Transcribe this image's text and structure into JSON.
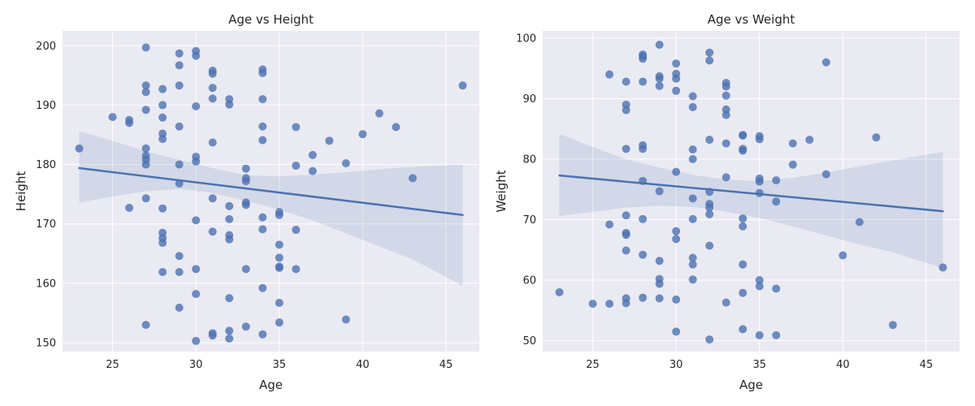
{
  "chart_data": [
    {
      "type": "scatter",
      "title": "Age vs Height",
      "xlabel": "Age",
      "ylabel": "Height",
      "xlim": [
        22,
        47
      ],
      "ylim": [
        148.5,
        202.5
      ],
      "xticks": [
        25,
        30,
        35,
        40,
        45
      ],
      "yticks": [
        150,
        160,
        170,
        180,
        190,
        200
      ],
      "grid": true,
      "regression_line": {
        "x": [
          23,
          46
        ],
        "y": [
          179.4,
          171.5
        ]
      },
      "confidence_band": {
        "x": [
          23,
          25,
          27,
          29,
          31,
          33,
          35,
          37,
          39,
          41,
          43,
          46
        ],
        "upper": [
          185.6,
          184.0,
          182.2,
          180.8,
          179.4,
          178.2,
          178.0,
          178.3,
          178.7,
          179.2,
          179.6,
          180.0
        ],
        "lower": [
          173.6,
          174.6,
          175.5,
          175.9,
          175.2,
          173.9,
          172.4,
          170.6,
          168.4,
          166.2,
          164.0,
          159.6
        ]
      },
      "points": [
        [
          23,
          182.7
        ],
        [
          25,
          188
        ],
        [
          26,
          187.5
        ],
        [
          26,
          187
        ],
        [
          26,
          172.7
        ],
        [
          27,
          199.7
        ],
        [
          27,
          193.3
        ],
        [
          27,
          192.2
        ],
        [
          27,
          189.2
        ],
        [
          27,
          182.7
        ],
        [
          27,
          181.5
        ],
        [
          27,
          180.8
        ],
        [
          27,
          180
        ],
        [
          27,
          174.3
        ],
        [
          27,
          153
        ],
        [
          28,
          192.7
        ],
        [
          28,
          190
        ],
        [
          28,
          187.9
        ],
        [
          28,
          185.2
        ],
        [
          28,
          184.3
        ],
        [
          28,
          172.6
        ],
        [
          28,
          168.5
        ],
        [
          28,
          167.6
        ],
        [
          28,
          166.8
        ],
        [
          28,
          161.9
        ],
        [
          29,
          198.7
        ],
        [
          29,
          196.7
        ],
        [
          29,
          193.3
        ],
        [
          29,
          186.4
        ],
        [
          29,
          180
        ],
        [
          29,
          176.8
        ],
        [
          29,
          164.6
        ],
        [
          29,
          161.9
        ],
        [
          29,
          155.9
        ],
        [
          30,
          199.1
        ],
        [
          30,
          198.3
        ],
        [
          30,
          189.8
        ],
        [
          30,
          181.3
        ],
        [
          30,
          180.5
        ],
        [
          30,
          170.6
        ],
        [
          30,
          162.4
        ],
        [
          30,
          158.2
        ],
        [
          30,
          150.3
        ],
        [
          31,
          195.8
        ],
        [
          31,
          195.3
        ],
        [
          31,
          192.9
        ],
        [
          31,
          191.1
        ],
        [
          31,
          183.7
        ],
        [
          31,
          174.3
        ],
        [
          31,
          168.7
        ],
        [
          31,
          151.6
        ],
        [
          31,
          151.2
        ],
        [
          32,
          191
        ],
        [
          32,
          190.1
        ],
        [
          32,
          173
        ],
        [
          32,
          170.8
        ],
        [
          32,
          168.1
        ],
        [
          32,
          167.4
        ],
        [
          32,
          157.5
        ],
        [
          32,
          152
        ],
        [
          32,
          150.7
        ],
        [
          33,
          179.3
        ],
        [
          33,
          177.7
        ],
        [
          33,
          177.2
        ],
        [
          33,
          173.6
        ],
        [
          33,
          173.2
        ],
        [
          33,
          162.4
        ],
        [
          33,
          152.7
        ],
        [
          34,
          196
        ],
        [
          34,
          195.4
        ],
        [
          34,
          191
        ],
        [
          34,
          186.4
        ],
        [
          34,
          184.1
        ],
        [
          34,
          171.1
        ],
        [
          34,
          169.1
        ],
        [
          34,
          159.2
        ],
        [
          34,
          151.4
        ],
        [
          35,
          172
        ],
        [
          35,
          171.5
        ],
        [
          35,
          166.5
        ],
        [
          35,
          164.3
        ],
        [
          35,
          162.8
        ],
        [
          35,
          162.6
        ],
        [
          35,
          156.7
        ],
        [
          35,
          153.4
        ],
        [
          36,
          186.3
        ],
        [
          36,
          179.8
        ],
        [
          36,
          169
        ],
        [
          36,
          162.4
        ],
        [
          37,
          181.6
        ],
        [
          37,
          178.9
        ],
        [
          38,
          184
        ],
        [
          39,
          180.2
        ],
        [
          39,
          153.9
        ],
        [
          40,
          185.1
        ],
        [
          41,
          188.6
        ],
        [
          42,
          186.3
        ],
        [
          43,
          177.7
        ],
        [
          46,
          193.3
        ]
      ]
    },
    {
      "type": "scatter",
      "title": "Age vs Weight",
      "xlabel": "Age",
      "ylabel": "Weight",
      "xlim": [
        22,
        47
      ],
      "ylim": [
        48.2,
        101.2
      ],
      "xticks": [
        25,
        30,
        35,
        40,
        45
      ],
      "yticks": [
        50,
        60,
        70,
        80,
        90,
        100
      ],
      "grid": true,
      "regression_line": {
        "x": [
          23,
          46
        ],
        "y": [
          77.3,
          71.4
        ]
      },
      "confidence_band": {
        "x": [
          23,
          25,
          27,
          29,
          31,
          33,
          35,
          37,
          39,
          41,
          43,
          46
        ],
        "upper": [
          84.2,
          82.0,
          80.0,
          78.6,
          77.4,
          76.6,
          76.4,
          76.9,
          77.8,
          78.8,
          79.8,
          81.2
        ],
        "lower": [
          70.6,
          71.3,
          72.0,
          72.3,
          72.1,
          71.3,
          70.3,
          68.9,
          67.4,
          65.9,
          64.6,
          62.0
        ]
      },
      "points": [
        [
          23,
          58
        ],
        [
          25,
          56.1
        ],
        [
          26,
          94
        ],
        [
          26,
          69.2
        ],
        [
          26,
          56.1
        ],
        [
          27,
          92.8
        ],
        [
          27,
          89
        ],
        [
          27,
          88.1
        ],
        [
          27,
          81.7
        ],
        [
          27,
          70.7
        ],
        [
          27,
          67.8
        ],
        [
          27,
          67.5
        ],
        [
          27,
          64.9
        ],
        [
          27,
          57
        ],
        [
          27,
          56.2
        ],
        [
          28,
          97.3
        ],
        [
          28,
          97
        ],
        [
          28,
          96.6
        ],
        [
          28,
          92.8
        ],
        [
          28,
          82.3
        ],
        [
          28,
          81.7
        ],
        [
          28,
          76.4
        ],
        [
          28,
          70.1
        ],
        [
          28,
          64.2
        ],
        [
          28,
          57.1
        ],
        [
          29,
          98.9
        ],
        [
          29,
          93.7
        ],
        [
          29,
          93.3
        ],
        [
          29,
          92.1
        ],
        [
          29,
          74.7
        ],
        [
          29,
          63.2
        ],
        [
          29,
          60.2
        ],
        [
          29,
          59.4
        ],
        [
          29,
          57
        ],
        [
          30,
          95.8
        ],
        [
          30,
          94.1
        ],
        [
          30,
          93.3
        ],
        [
          30,
          91.3
        ],
        [
          30,
          77.9
        ],
        [
          30,
          68.1
        ],
        [
          30,
          66.8
        ],
        [
          30,
          56.8
        ],
        [
          30,
          51.5
        ],
        [
          31,
          90.4
        ],
        [
          31,
          88.6
        ],
        [
          31,
          81.6
        ],
        [
          31,
          80
        ],
        [
          31,
          73.5
        ],
        [
          31,
          70.1
        ],
        [
          31,
          63.7
        ],
        [
          31,
          62.6
        ],
        [
          31,
          60.1
        ],
        [
          32,
          97.6
        ],
        [
          32,
          96.3
        ],
        [
          32,
          83.2
        ],
        [
          32,
          74.6
        ],
        [
          32,
          72.6
        ],
        [
          32,
          72
        ],
        [
          32,
          70.9
        ],
        [
          32,
          65.7
        ],
        [
          32,
          50.2
        ],
        [
          33,
          92.6
        ],
        [
          33,
          92
        ],
        [
          33,
          90.5
        ],
        [
          33,
          88.2
        ],
        [
          33,
          87.3
        ],
        [
          33,
          82.6
        ],
        [
          33,
          77
        ],
        [
          33,
          56.3
        ],
        [
          34,
          84
        ],
        [
          34,
          83.9
        ],
        [
          34,
          81.7
        ],
        [
          34,
          81.4
        ],
        [
          34,
          70.2
        ],
        [
          34,
          68.9
        ],
        [
          34,
          62.6
        ],
        [
          34,
          57.9
        ],
        [
          34,
          51.9
        ],
        [
          35,
          83.8
        ],
        [
          35,
          83.3
        ],
        [
          35,
          76.8
        ],
        [
          35,
          76.3
        ],
        [
          35,
          74.4
        ],
        [
          35,
          60
        ],
        [
          35,
          59
        ],
        [
          35,
          50.9
        ],
        [
          36,
          76.5
        ],
        [
          36,
          73
        ],
        [
          36,
          58.6
        ],
        [
          36,
          50.9
        ],
        [
          37,
          82.6
        ],
        [
          37,
          79.1
        ],
        [
          38,
          83.2
        ],
        [
          39,
          96
        ],
        [
          39,
          77.5
        ],
        [
          40,
          64.1
        ],
        [
          41,
          69.6
        ],
        [
          42,
          83.6
        ],
        [
          43,
          52.6
        ],
        [
          46,
          62.1
        ]
      ]
    }
  ]
}
